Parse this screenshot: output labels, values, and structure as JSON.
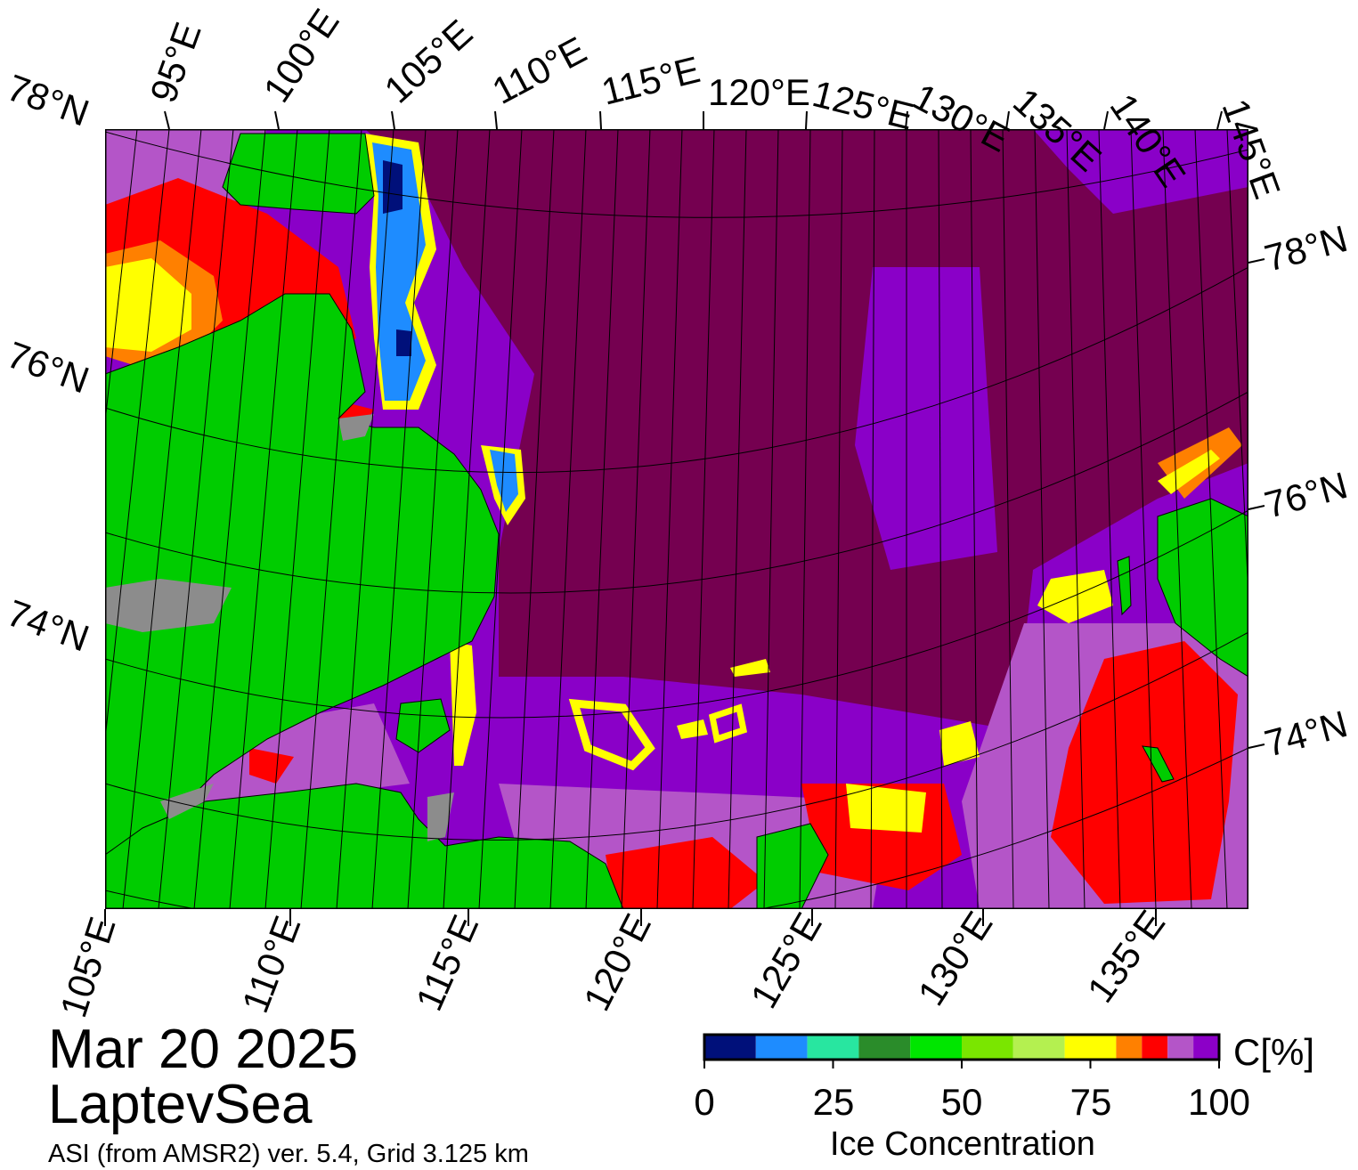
{
  "map": {
    "date": "Mar 20 2025",
    "region": "LaptevSea",
    "source": "ASI (from AMSR2) ver. 5.4,  Grid 3.125 km",
    "top_lon_labels": [
      "95°E",
      "100°E",
      "105°E",
      "110°E",
      "115°E",
      "120°E",
      "125°E",
      "130°E",
      "135°E",
      "140°E",
      "145°E"
    ],
    "bottom_lon_labels": [
      "105°E",
      "110°E",
      "115°E",
      "120°E",
      "125°E",
      "130°E",
      "135°E"
    ],
    "left_lat_labels": [
      "78°N",
      "76°N",
      "74°N"
    ],
    "right_lat_labels": [
      "78°N",
      "76°N",
      "74°N"
    ],
    "colors": {
      "land": "#00cc00",
      "coast_shelf": "#8c8c8c",
      "ice_100": "#750050",
      "ice_95": "#8a00c8",
      "ice_90": "#b455c8",
      "ice_85": "#ff0000",
      "ice_80": "#ff8000",
      "ice_75": "#ffff00",
      "low_ice": "#1e90ff",
      "very_low_ice": "#001080"
    }
  },
  "colorbar": {
    "title": "Ice Concentration",
    "unit": "C[%]",
    "ticks": [
      "0",
      "25",
      "50",
      "75",
      "100"
    ],
    "range": [
      0,
      100
    ],
    "segments": [
      {
        "from": 0,
        "to": 10,
        "color": "#00107a"
      },
      {
        "from": 10,
        "to": 20,
        "color": "#1e8cff"
      },
      {
        "from": 20,
        "to": 30,
        "color": "#28e6a0"
      },
      {
        "from": 30,
        "to": 40,
        "color": "#2a8c2a"
      },
      {
        "from": 40,
        "to": 50,
        "color": "#00e600"
      },
      {
        "from": 50,
        "to": 60,
        "color": "#7ae600"
      },
      {
        "from": 60,
        "to": 70,
        "color": "#b4f050"
      },
      {
        "from": 70,
        "to": 80,
        "color": "#ffff00"
      },
      {
        "from": 80,
        "to": 85,
        "color": "#ff8000"
      },
      {
        "from": 85,
        "to": 90,
        "color": "#ff0000"
      },
      {
        "from": 90,
        "to": 95,
        "color": "#b455c8"
      },
      {
        "from": 95,
        "to": 100,
        "color": "#8c00c8"
      }
    ]
  }
}
